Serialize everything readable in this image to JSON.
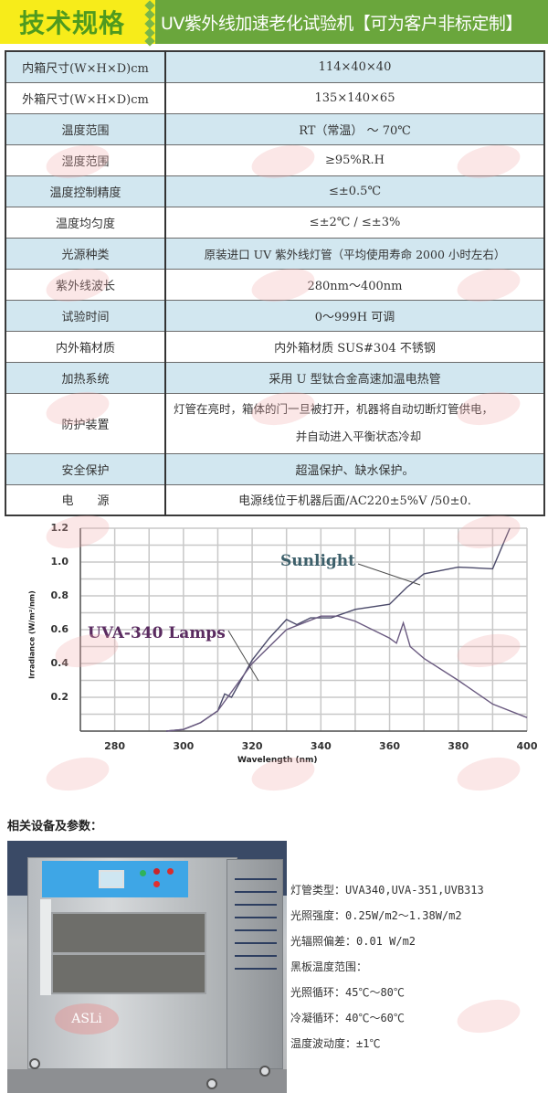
{
  "banner": {
    "left_title": "技术规格",
    "right_title": "UV紫外线加速老化试验机【可为客户非标定制】",
    "colors": {
      "yellow": "#f7ec1a",
      "green": "#6aa63c",
      "title_green": "#4f9a1f"
    }
  },
  "spec_table": {
    "rows": [
      {
        "key": "内箱尺寸(W×H×D)cm",
        "value": "114×40×40"
      },
      {
        "key": "外箱尺寸(W×H×D)cm",
        "value": "135×140×65"
      },
      {
        "key": "温度范围",
        "value": "RT（常温） ～ 70℃"
      },
      {
        "key": "湿度范围",
        "value": "≥95%R.H"
      },
      {
        "key": "温度控制精度",
        "value": "≤±0.5℃"
      },
      {
        "key": "温度均匀度",
        "value": "≤±2℃ / ≤±3%"
      },
      {
        "key": "光源种类",
        "value": "原装进口 UV 紫外线灯管（平均使用寿命 2000 小时左右）"
      },
      {
        "key": "紫外线波长",
        "value": "280nm～400nm"
      },
      {
        "key": "试验时间",
        "value": "0～999H 可调"
      },
      {
        "key": "内外箱材质",
        "value": "内外箱材质 SUS#304 不锈钢"
      },
      {
        "key": "加热系统",
        "value": "采用 U 型钛合金高速加温电热管"
      },
      {
        "key": "防护装置",
        "value": "灯管在亮时，箱体的门一旦被打开，机器将自动切断灯管供电，",
        "value_line2": "并自动进入平衡状态冷却"
      },
      {
        "key": "安全保护",
        "value": "超温保护、缺水保护。"
      },
      {
        "key": "电　　源",
        "value": "电源线位于机器后面/AC220±5%V /50±0."
      }
    ],
    "colors": {
      "blue_row": "#d2e7f0",
      "white_row": "#ffffff"
    }
  },
  "chart_data": {
    "type": "line",
    "title": "",
    "xlabel": "Wavelength (nm)",
    "ylabel": "Irradiance (W/m²/nm)",
    "xlim": [
      270,
      400
    ],
    "ylim": [
      0,
      1.2
    ],
    "x_ticks": [
      "280",
      "300",
      "320",
      "340",
      "360",
      "380",
      "400"
    ],
    "y_ticks": [
      "0.2",
      "0.4",
      "0.6",
      "0.8",
      "1.0",
      "1.2"
    ],
    "grid": true,
    "series": [
      {
        "name": "Sunlight",
        "color": "#4b4a6a",
        "x": [
          295,
          300,
          305,
          310,
          312,
          314,
          320,
          325,
          330,
          333,
          337,
          343,
          350,
          360,
          365,
          370,
          380,
          390,
          395
        ],
        "y": [
          0.0,
          0.01,
          0.05,
          0.12,
          0.22,
          0.2,
          0.42,
          0.55,
          0.66,
          0.63,
          0.67,
          0.67,
          0.72,
          0.75,
          0.85,
          0.93,
          0.97,
          0.96,
          1.2
        ]
      },
      {
        "name": "UVA-340 Lamps",
        "color": "#6a5a80",
        "x": [
          295,
          300,
          305,
          310,
          320,
          330,
          340,
          345,
          350,
          360,
          362,
          364,
          366,
          370,
          380,
          390,
          400
        ],
        "y": [
          0.0,
          0.01,
          0.05,
          0.12,
          0.4,
          0.6,
          0.68,
          0.68,
          0.65,
          0.55,
          0.52,
          0.64,
          0.5,
          0.43,
          0.3,
          0.16,
          0.08
        ]
      }
    ],
    "annotations": [
      {
        "text": "Sunlight",
        "color": "#3c5f6a"
      },
      {
        "text": "UVA-340 Lamps",
        "color": "#5a2b60"
      }
    ]
  },
  "related": {
    "title": "相关设备及参数：",
    "image_alt": "UV aging test chamber photo",
    "logo_text": "ASLi",
    "params": [
      "灯管类型：UVA340,UVA-351,UVB313",
      "光照强度：0.25W/m2～1.38W/m2",
      "光辐照偏差：0.01 W/m2",
      "黑板温度范围：",
      "光照循环：45℃～80℃",
      "冷凝循环：40℃～60℃",
      "温度波动度：±1℃"
    ]
  },
  "watermark": {
    "text": "ASLi",
    "icon": "registered-mark-icon"
  }
}
